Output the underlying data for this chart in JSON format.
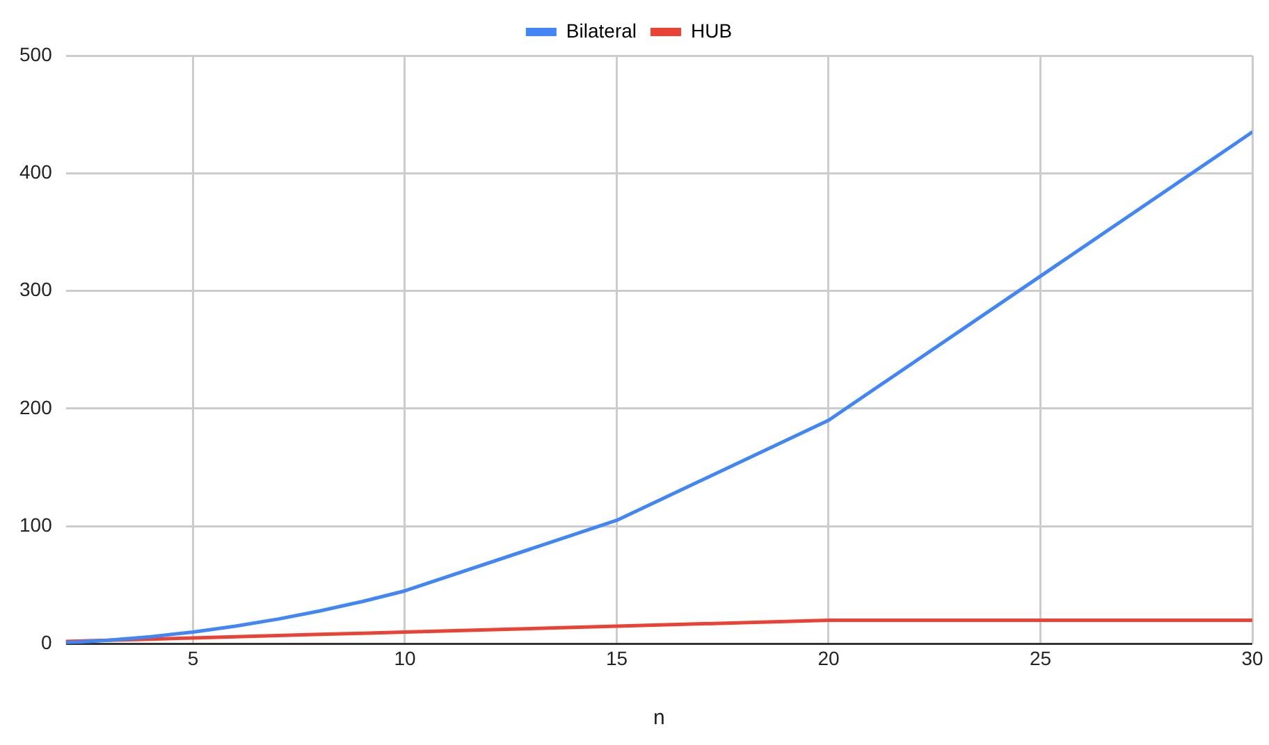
{
  "chart_data": {
    "type": "line",
    "xlabel": "n",
    "x": [
      2,
      3,
      4,
      5,
      6,
      7,
      8,
      9,
      10,
      15,
      20,
      30
    ],
    "series": [
      {
        "name": "Bilateral",
        "color": "#4285f4",
        "values": [
          1,
          3,
          6,
          10,
          15,
          21,
          28,
          36,
          45,
          105,
          190,
          435
        ]
      },
      {
        "name": "HUB",
        "color": "#ea4335",
        "values": [
          2,
          3,
          4,
          5,
          6,
          7,
          8,
          9,
          10,
          15,
          20,
          20
        ]
      }
    ],
    "xlim": [
      2,
      30
    ],
    "xticks": [
      5,
      10,
      15,
      20,
      25,
      30
    ],
    "ylim": [
      0,
      500
    ],
    "yticks": [
      0,
      100,
      200,
      300,
      400,
      500
    ],
    "grid": true,
    "legend": "top",
    "marker": "none",
    "line_style": "solid"
  }
}
